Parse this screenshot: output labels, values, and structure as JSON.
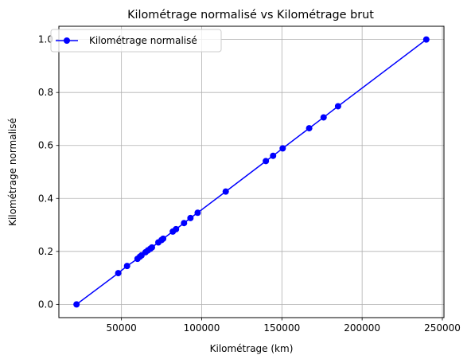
{
  "chart_data": {
    "type": "line",
    "title": "Kilométrage normalisé vs Kilométrage brut",
    "xlabel": "Kilométrage (km)",
    "ylabel": "Kilométrage normalisé",
    "xlim": [
      11000,
      251000
    ],
    "ylim": [
      -0.05,
      1.05
    ],
    "xticks": [
      50000,
      100000,
      150000,
      200000,
      250000
    ],
    "xtick_labels": [
      "50000",
      "100000",
      "150000",
      "200000",
      "250000"
    ],
    "yticks": [
      0.0,
      0.2,
      0.4,
      0.6,
      0.8,
      1.0
    ],
    "ytick_labels": [
      "0.0",
      "0.2",
      "0.4",
      "0.6",
      "0.8",
      "1.0"
    ],
    "grid": true,
    "legend_position": "upper-left",
    "colors": {
      "series": "#0000ff",
      "grid": "#b0b0b0",
      "axes": "#000000"
    },
    "series": [
      {
        "name": "Kilométrage normalisé",
        "color": "#0000ff",
        "marker": "circle",
        "x": [
          22000,
          48000,
          53500,
          60000,
          61500,
          62500,
          65000,
          66500,
          68000,
          69000,
          73000,
          75000,
          76000,
          82000,
          84000,
          89000,
          93000,
          97500,
          115000,
          140000,
          144500,
          150500,
          167000,
          176000,
          185000,
          240000
        ],
        "y": [
          0.0,
          0.118,
          0.145,
          0.172,
          0.18,
          0.185,
          0.197,
          0.204,
          0.21,
          0.215,
          0.234,
          0.243,
          0.248,
          0.275,
          0.284,
          0.307,
          0.326,
          0.346,
          0.426,
          0.541,
          0.561,
          0.589,
          0.665,
          0.706,
          0.748,
          1.0
        ]
      }
    ]
  }
}
